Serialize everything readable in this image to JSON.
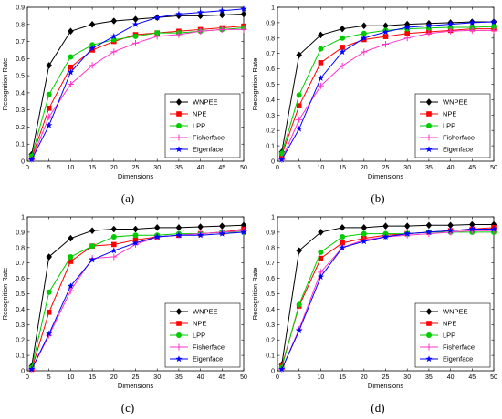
{
  "figure": {
    "captions": [
      "(a)",
      "(b)",
      "(c)",
      "(d)"
    ],
    "series_colors": {
      "WNPEE": "#000000",
      "NPE": "#ff0000",
      "LPP": "#00cc00",
      "Fisherface": "#ff33cc",
      "Eigenface": "#0000ff"
    },
    "series_markers": {
      "WNPEE": "diamond",
      "NPE": "square",
      "LPP": "circle",
      "Fisherface": "plus",
      "Eigenface": "star"
    }
  },
  "chart_data": [
    {
      "type": "line",
      "xlabel": "Dimensions",
      "ylabel": "Recognition Rate",
      "xlim": [
        0,
        50
      ],
      "ylim": [
        0,
        0.9
      ],
      "xticks": [
        0,
        5,
        10,
        15,
        20,
        25,
        30,
        35,
        40,
        45,
        50
      ],
      "yticks": [
        0,
        0.1,
        0.2,
        0.3,
        0.4,
        0.5,
        0.6,
        0.7,
        0.8,
        0.9
      ],
      "ytick_labels": [
        "0",
        "0.1",
        "0.2",
        "0.3",
        "0.4",
        "0.5",
        "0.6",
        "0.7",
        "0.8",
        "0.9"
      ],
      "grid": false,
      "legend_position": "bottom-right",
      "x": [
        1,
        5,
        10,
        15,
        20,
        25,
        30,
        35,
        40,
        45,
        50
      ],
      "series": [
        {
          "name": "WNPEE",
          "values": [
            0.04,
            0.56,
            0.76,
            0.8,
            0.82,
            0.83,
            0.84,
            0.85,
            0.85,
            0.855,
            0.86
          ]
        },
        {
          "name": "NPE",
          "values": [
            0.02,
            0.31,
            0.55,
            0.65,
            0.7,
            0.74,
            0.75,
            0.76,
            0.77,
            0.78,
            0.79
          ]
        },
        {
          "name": "LPP",
          "values": [
            0.03,
            0.39,
            0.61,
            0.68,
            0.71,
            0.73,
            0.75,
            0.75,
            0.76,
            0.77,
            0.78
          ]
        },
        {
          "name": "Fisherface",
          "values": [
            0.01,
            0.26,
            0.45,
            0.56,
            0.64,
            0.69,
            0.73,
            0.74,
            0.76,
            0.77,
            0.77
          ]
        },
        {
          "name": "Eigenface",
          "values": [
            0.01,
            0.21,
            0.52,
            0.66,
            0.73,
            0.8,
            0.84,
            0.86,
            0.87,
            0.88,
            0.89
          ]
        }
      ]
    },
    {
      "type": "line",
      "xlabel": "Dimensions",
      "ylabel": "Recognition Rate",
      "xlim": [
        0,
        50
      ],
      "ylim": [
        0,
        1
      ],
      "xticks": [
        0,
        5,
        10,
        15,
        20,
        25,
        30,
        35,
        40,
        45,
        50
      ],
      "yticks": [
        0,
        0.1,
        0.2,
        0.3,
        0.4,
        0.5,
        0.6,
        0.7,
        0.8,
        0.9,
        1
      ],
      "ytick_labels": [
        "0",
        "0.1",
        "0.2",
        "0.3",
        "0.4",
        "0.5",
        "0.6",
        "0.7",
        "0.8",
        "0.9",
        "1"
      ],
      "grid": false,
      "legend_position": "bottom-right",
      "x": [
        1,
        5,
        10,
        15,
        20,
        25,
        30,
        35,
        40,
        45,
        50
      ],
      "series": [
        {
          "name": "WNPEE",
          "values": [
            0.06,
            0.69,
            0.82,
            0.86,
            0.88,
            0.88,
            0.89,
            0.895,
            0.9,
            0.905,
            0.905
          ]
        },
        {
          "name": "NPE",
          "values": [
            0.04,
            0.36,
            0.64,
            0.74,
            0.79,
            0.81,
            0.83,
            0.84,
            0.85,
            0.86,
            0.86
          ]
        },
        {
          "name": "LPP",
          "values": [
            0.05,
            0.43,
            0.73,
            0.8,
            0.83,
            0.85,
            0.86,
            0.865,
            0.87,
            0.87,
            0.875
          ]
        },
        {
          "name": "Fisherface",
          "values": [
            0.01,
            0.27,
            0.49,
            0.62,
            0.71,
            0.76,
            0.8,
            0.83,
            0.845,
            0.85,
            0.85
          ]
        },
        {
          "name": "Eigenface",
          "values": [
            0.01,
            0.21,
            0.54,
            0.71,
            0.8,
            0.84,
            0.87,
            0.88,
            0.89,
            0.9,
            0.905
          ]
        }
      ]
    },
    {
      "type": "line",
      "xlabel": "Dimensions",
      "ylabel": "Recognition Rate",
      "xlim": [
        0,
        50
      ],
      "ylim": [
        0,
        1
      ],
      "xticks": [
        0,
        5,
        10,
        15,
        20,
        25,
        30,
        35,
        40,
        45,
        50
      ],
      "yticks": [
        0,
        0.1,
        0.2,
        0.3,
        0.4,
        0.5,
        0.6,
        0.7,
        0.8,
        0.9,
        1
      ],
      "ytick_labels": [
        "0",
        "0.1",
        "0.2",
        "0.3",
        "0.4",
        "0.5",
        "0.6",
        "0.7",
        "0.8",
        "0.9",
        "1"
      ],
      "grid": false,
      "legend_position": "bottom-right",
      "x": [
        1,
        5,
        10,
        15,
        20,
        25,
        30,
        35,
        40,
        45,
        50
      ],
      "series": [
        {
          "name": "WNPEE",
          "values": [
            0.03,
            0.74,
            0.86,
            0.91,
            0.92,
            0.92,
            0.93,
            0.93,
            0.935,
            0.94,
            0.945
          ]
        },
        {
          "name": "NPE",
          "values": [
            0.01,
            0.38,
            0.71,
            0.81,
            0.82,
            0.85,
            0.87,
            0.88,
            0.89,
            0.9,
            0.92
          ]
        },
        {
          "name": "LPP",
          "values": [
            0.02,
            0.51,
            0.74,
            0.81,
            0.87,
            0.88,
            0.88,
            0.89,
            0.89,
            0.9,
            0.9
          ]
        },
        {
          "name": "Fisherface",
          "values": [
            0.01,
            0.23,
            0.52,
            0.73,
            0.74,
            0.82,
            0.87,
            0.88,
            0.89,
            0.9,
            0.91
          ]
        },
        {
          "name": "Eigenface",
          "values": [
            0.01,
            0.24,
            0.55,
            0.72,
            0.78,
            0.83,
            0.87,
            0.88,
            0.88,
            0.89,
            0.9
          ]
        }
      ]
    },
    {
      "type": "line",
      "xlabel": "Dimensions",
      "ylabel": "Recognition Rate",
      "xlim": [
        0,
        50
      ],
      "ylim": [
        0,
        1
      ],
      "xticks": [
        0,
        5,
        10,
        15,
        20,
        25,
        30,
        35,
        40,
        45,
        50
      ],
      "yticks": [
        0,
        0.1,
        0.2,
        0.3,
        0.4,
        0.5,
        0.6,
        0.7,
        0.8,
        0.9,
        1
      ],
      "ytick_labels": [
        "0",
        "0.1",
        "0.2",
        "0.3",
        "0.4",
        "0.5",
        "0.6",
        "0.7",
        "0.8",
        "0.9",
        "1"
      ],
      "grid": false,
      "legend_position": "bottom-right",
      "x": [
        1,
        5,
        10,
        15,
        20,
        25,
        30,
        35,
        40,
        45,
        50
      ],
      "series": [
        {
          "name": "WNPEE",
          "values": [
            0.04,
            0.78,
            0.9,
            0.93,
            0.93,
            0.94,
            0.94,
            0.945,
            0.945,
            0.95,
            0.95
          ]
        },
        {
          "name": "NPE",
          "values": [
            0.03,
            0.42,
            0.73,
            0.83,
            0.86,
            0.88,
            0.89,
            0.9,
            0.91,
            0.92,
            0.93
          ]
        },
        {
          "name": "LPP",
          "values": [
            0.02,
            0.43,
            0.77,
            0.87,
            0.89,
            0.89,
            0.89,
            0.9,
            0.9,
            0.9,
            0.9
          ]
        },
        {
          "name": "Fisherface",
          "values": [
            0.01,
            0.27,
            0.64,
            0.8,
            0.85,
            0.87,
            0.88,
            0.89,
            0.9,
            0.91,
            0.91
          ]
        },
        {
          "name": "Eigenface",
          "values": [
            0.01,
            0.26,
            0.61,
            0.8,
            0.84,
            0.87,
            0.89,
            0.9,
            0.91,
            0.92,
            0.92
          ]
        }
      ]
    }
  ]
}
